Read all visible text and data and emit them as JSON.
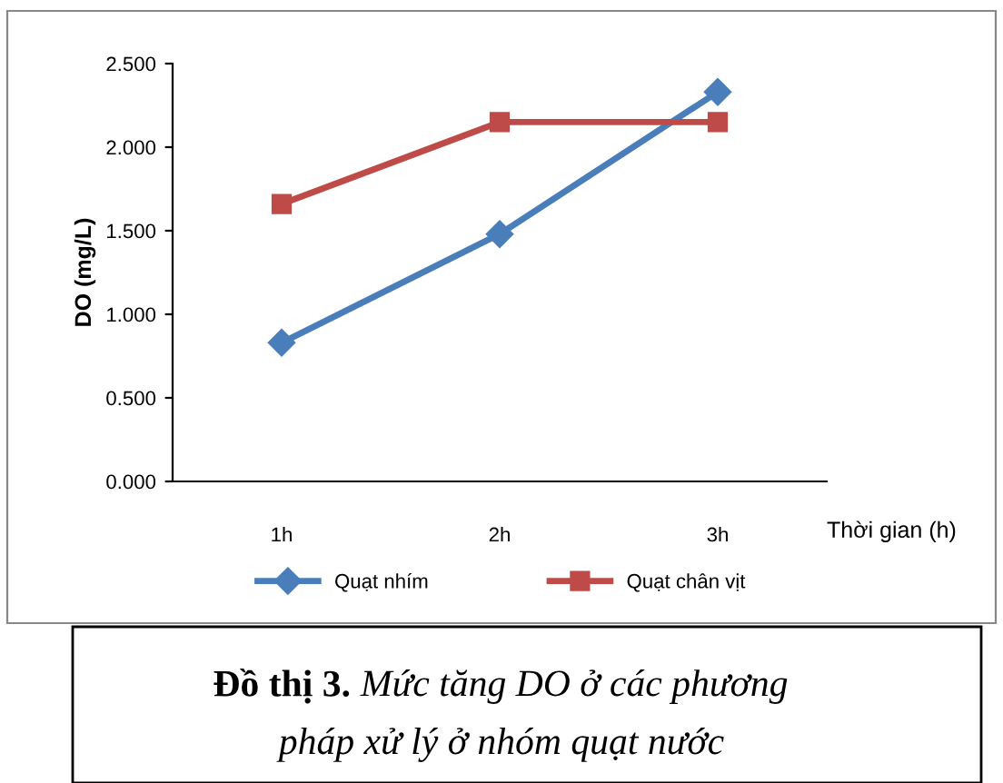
{
  "chart_data": {
    "type": "line",
    "ylabel": "DO (mg/L)",
    "xlabel": "Thời gian (h)",
    "categories": [
      "1h",
      "2h",
      "3h"
    ],
    "series": [
      {
        "name": "Quạt nhím",
        "color": "#4a7ebb",
        "values": [
          0.83,
          1.48,
          2.33
        ],
        "marker": "diamond"
      },
      {
        "name": "Quạt chân vịt",
        "color": "#be4b48",
        "values": [
          1.66,
          2.15,
          2.15
        ],
        "marker": "square"
      }
    ],
    "ylim": [
      0,
      2.5
    ],
    "yticks": [
      {
        "value": 0,
        "label": "0.000"
      },
      {
        "value": 0.5,
        "label": "0.500"
      },
      {
        "value": 1,
        "label": "1.000"
      },
      {
        "value": 1.5,
        "label": "1.500"
      },
      {
        "value": 2,
        "label": "2.000"
      },
      {
        "value": 2.5,
        "label": "2.500"
      }
    ],
    "grid": false,
    "legend": "bottom",
    "line_style": "solid",
    "annotations": [
      "Đồ thị 3.",
      "Mức tăng DO ở các phương pháp xử lý ở nhóm quạt nước"
    ]
  }
}
